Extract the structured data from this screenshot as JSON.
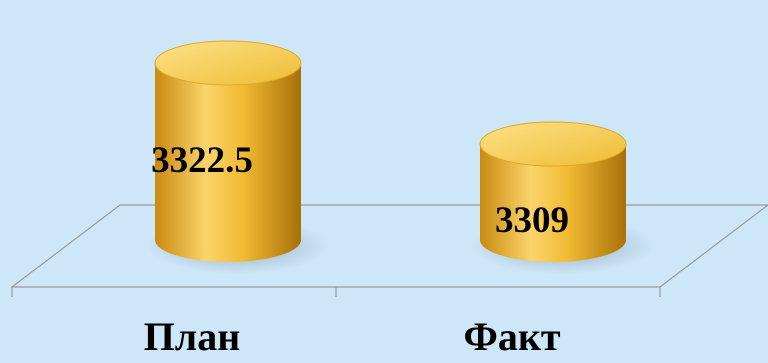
{
  "chart_data": {
    "type": "bar",
    "categories": [
      "План",
      "Факт"
    ],
    "values": [
      3322.5,
      3309
    ],
    "value_labels": [
      "3322.5",
      "3309"
    ],
    "title": "",
    "xlabel": "",
    "ylabel": "",
    "style": "3d-cylinder",
    "grid": false,
    "legend": "none",
    "colors": {
      "background": "#cde6f8",
      "bar_face": "#f2be33",
      "bar_top": "#f7d256",
      "floor_line": "#9a9a9a",
      "label_text": "#000000"
    }
  }
}
